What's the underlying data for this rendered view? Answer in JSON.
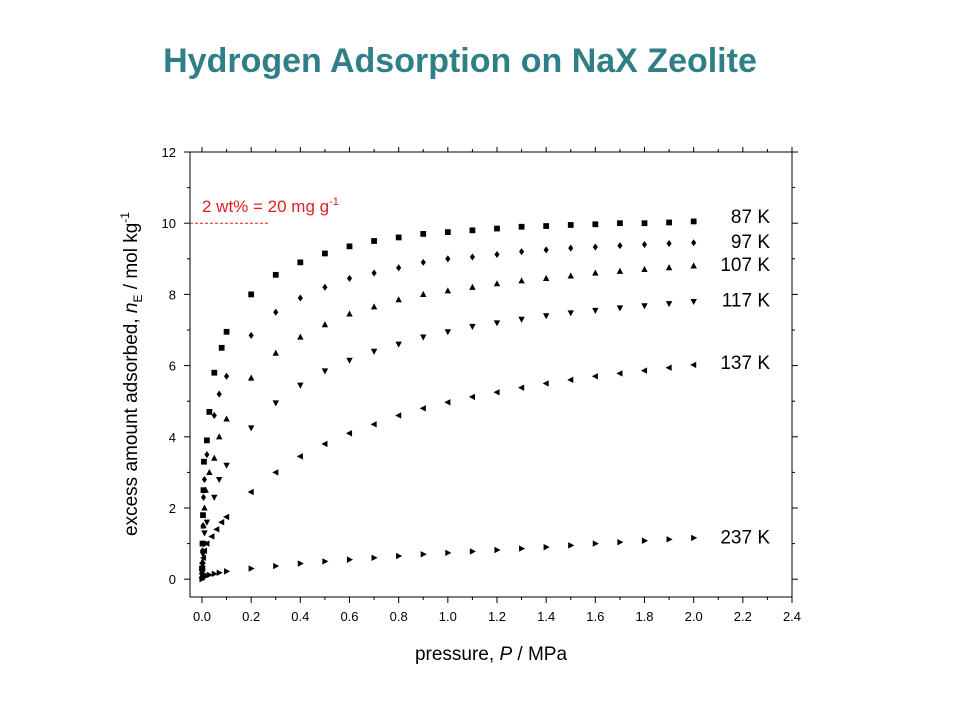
{
  "title": "Hydrogen Adsorption on NaX Zeolite",
  "chart_data": {
    "type": "scatter",
    "title": "Hydrogen Adsorption on NaX Zeolite",
    "xlabel": {
      "prefix": "pressure, ",
      "italic": "P",
      "suffix": " / MPa"
    },
    "ylabel": {
      "prefix": "excess amount adsorbed, ",
      "italic": "n",
      "subscript": "E",
      "mid": " / mol kg",
      "superscript": "-1"
    },
    "xlim": [
      0,
      2.4
    ],
    "ylim": [
      -0.5,
      12
    ],
    "xticks": [
      "0.0",
      "0.2",
      "0.4",
      "0.6",
      "0.8",
      "1.0",
      "1.2",
      "1.4",
      "1.6",
      "1.8",
      "2.0",
      "2.2",
      "2.4"
    ],
    "yticks": [
      "0",
      "2",
      "4",
      "6",
      "8",
      "10",
      "12"
    ],
    "grid": false,
    "annotation": {
      "text": "2 wt% = 20 mg g",
      "superscript": "-1",
      "y": 10,
      "color": "#e02020"
    },
    "series": [
      {
        "name": "87 K",
        "marker": "square",
        "label_y": 10.2,
        "points": [
          [
            0.0,
            0.3
          ],
          [
            0.002,
            1.0
          ],
          [
            0.004,
            1.8
          ],
          [
            0.006,
            2.5
          ],
          [
            0.008,
            3.3
          ],
          [
            0.02,
            3.9
          ],
          [
            0.03,
            4.7
          ],
          [
            0.05,
            5.8
          ],
          [
            0.08,
            6.5
          ],
          [
            0.1,
            6.95
          ],
          [
            0.2,
            8.0
          ],
          [
            0.3,
            8.55
          ],
          [
            0.4,
            8.9
          ],
          [
            0.5,
            9.15
          ],
          [
            0.6,
            9.35
          ],
          [
            0.7,
            9.5
          ],
          [
            0.8,
            9.6
          ],
          [
            0.9,
            9.7
          ],
          [
            1.0,
            9.75
          ],
          [
            1.1,
            9.8
          ],
          [
            1.2,
            9.85
          ],
          [
            1.3,
            9.9
          ],
          [
            1.4,
            9.92
          ],
          [
            1.5,
            9.95
          ],
          [
            1.6,
            9.97
          ],
          [
            1.7,
            10.0
          ],
          [
            1.8,
            10.0
          ],
          [
            1.9,
            10.02
          ],
          [
            2.0,
            10.05
          ]
        ]
      },
      {
        "name": "97 K",
        "marker": "diamond",
        "label_y": 9.5,
        "points": [
          [
            0.0,
            0.2
          ],
          [
            0.002,
            0.8
          ],
          [
            0.004,
            1.5
          ],
          [
            0.006,
            2.3
          ],
          [
            0.01,
            2.8
          ],
          [
            0.02,
            3.5
          ],
          [
            0.05,
            4.6
          ],
          [
            0.07,
            5.2
          ],
          [
            0.1,
            5.7
          ],
          [
            0.2,
            6.85
          ],
          [
            0.3,
            7.5
          ],
          [
            0.4,
            7.9
          ],
          [
            0.5,
            8.2
          ],
          [
            0.6,
            8.45
          ],
          [
            0.7,
            8.6
          ],
          [
            0.8,
            8.75
          ],
          [
            0.9,
            8.9
          ],
          [
            1.0,
            9.0
          ],
          [
            1.1,
            9.05
          ],
          [
            1.2,
            9.12
          ],
          [
            1.3,
            9.2
          ],
          [
            1.4,
            9.25
          ],
          [
            1.5,
            9.3
          ],
          [
            1.6,
            9.33
          ],
          [
            1.7,
            9.37
          ],
          [
            1.8,
            9.4
          ],
          [
            1.9,
            9.43
          ],
          [
            2.0,
            9.45
          ]
        ]
      },
      {
        "name": "107 K",
        "marker": "triangle-up",
        "label_y": 8.85,
        "points": [
          [
            0.0,
            0.1
          ],
          [
            0.002,
            0.5
          ],
          [
            0.004,
            1.0
          ],
          [
            0.006,
            1.5
          ],
          [
            0.01,
            2.0
          ],
          [
            0.015,
            2.5
          ],
          [
            0.03,
            3.0
          ],
          [
            0.05,
            3.4
          ],
          [
            0.07,
            4.0
          ],
          [
            0.1,
            4.5
          ],
          [
            0.2,
            5.65
          ],
          [
            0.3,
            6.35
          ],
          [
            0.4,
            6.8
          ],
          [
            0.5,
            7.15
          ],
          [
            0.6,
            7.45
          ],
          [
            0.7,
            7.65
          ],
          [
            0.8,
            7.85
          ],
          [
            0.9,
            8.0
          ],
          [
            1.0,
            8.1
          ],
          [
            1.1,
            8.2
          ],
          [
            1.2,
            8.3
          ],
          [
            1.3,
            8.38
          ],
          [
            1.4,
            8.45
          ],
          [
            1.5,
            8.52
          ],
          [
            1.6,
            8.6
          ],
          [
            1.7,
            8.65
          ],
          [
            1.8,
            8.7
          ],
          [
            1.9,
            8.75
          ],
          [
            2.0,
            8.8
          ]
        ]
      },
      {
        "name": "117 K",
        "marker": "triangle-down",
        "label_y": 7.85,
        "points": [
          [
            0.0,
            0.1
          ],
          [
            0.002,
            0.4
          ],
          [
            0.004,
            0.7
          ],
          [
            0.006,
            1.0
          ],
          [
            0.01,
            1.3
          ],
          [
            0.02,
            1.6
          ],
          [
            0.05,
            2.3
          ],
          [
            0.07,
            2.8
          ],
          [
            0.1,
            3.2
          ],
          [
            0.2,
            4.25
          ],
          [
            0.3,
            4.95
          ],
          [
            0.4,
            5.45
          ],
          [
            0.5,
            5.85
          ],
          [
            0.6,
            6.15
          ],
          [
            0.7,
            6.4
          ],
          [
            0.8,
            6.6
          ],
          [
            0.9,
            6.8
          ],
          [
            1.0,
            6.95
          ],
          [
            1.1,
            7.1
          ],
          [
            1.2,
            7.2
          ],
          [
            1.3,
            7.3
          ],
          [
            1.4,
            7.4
          ],
          [
            1.5,
            7.48
          ],
          [
            1.6,
            7.55
          ],
          [
            1.7,
            7.62
          ],
          [
            1.8,
            7.68
          ],
          [
            1.9,
            7.74
          ],
          [
            2.0,
            7.8
          ]
        ]
      },
      {
        "name": "137 K",
        "marker": "triangle-left",
        "label_y": 6.1,
        "points": [
          [
            0.0,
            0.05
          ],
          [
            0.003,
            0.3
          ],
          [
            0.006,
            0.6
          ],
          [
            0.01,
            0.8
          ],
          [
            0.02,
            1.0
          ],
          [
            0.04,
            1.2
          ],
          [
            0.06,
            1.4
          ],
          [
            0.08,
            1.6
          ],
          [
            0.1,
            1.75
          ],
          [
            0.2,
            2.45
          ],
          [
            0.3,
            3.0
          ],
          [
            0.4,
            3.45
          ],
          [
            0.5,
            3.8
          ],
          [
            0.6,
            4.1
          ],
          [
            0.7,
            4.35
          ],
          [
            0.8,
            4.6
          ],
          [
            0.9,
            4.8
          ],
          [
            1.0,
            4.97
          ],
          [
            1.1,
            5.12
          ],
          [
            1.2,
            5.25
          ],
          [
            1.3,
            5.38
          ],
          [
            1.4,
            5.5
          ],
          [
            1.5,
            5.6
          ],
          [
            1.6,
            5.7
          ],
          [
            1.7,
            5.78
          ],
          [
            1.8,
            5.86
          ],
          [
            1.9,
            5.94
          ],
          [
            2.0,
            6.02
          ]
        ]
      },
      {
        "name": "237 K",
        "marker": "triangle-right",
        "label_y": 1.2,
        "points": [
          [
            0.0,
            0.0
          ],
          [
            0.005,
            0.05
          ],
          [
            0.01,
            0.08
          ],
          [
            0.02,
            0.1
          ],
          [
            0.03,
            0.12
          ],
          [
            0.05,
            0.15
          ],
          [
            0.07,
            0.18
          ],
          [
            0.1,
            0.22
          ],
          [
            0.2,
            0.3
          ],
          [
            0.3,
            0.37
          ],
          [
            0.4,
            0.44
          ],
          [
            0.5,
            0.5
          ],
          [
            0.6,
            0.55
          ],
          [
            0.7,
            0.6
          ],
          [
            0.8,
            0.65
          ],
          [
            0.9,
            0.7
          ],
          [
            1.0,
            0.74
          ],
          [
            1.1,
            0.78
          ],
          [
            1.2,
            0.82
          ],
          [
            1.3,
            0.86
          ],
          [
            1.4,
            0.9
          ],
          [
            1.5,
            0.95
          ],
          [
            1.6,
            1.0
          ],
          [
            1.7,
            1.04
          ],
          [
            1.8,
            1.08
          ],
          [
            1.9,
            1.12
          ],
          [
            2.0,
            1.16
          ]
        ]
      }
    ]
  }
}
